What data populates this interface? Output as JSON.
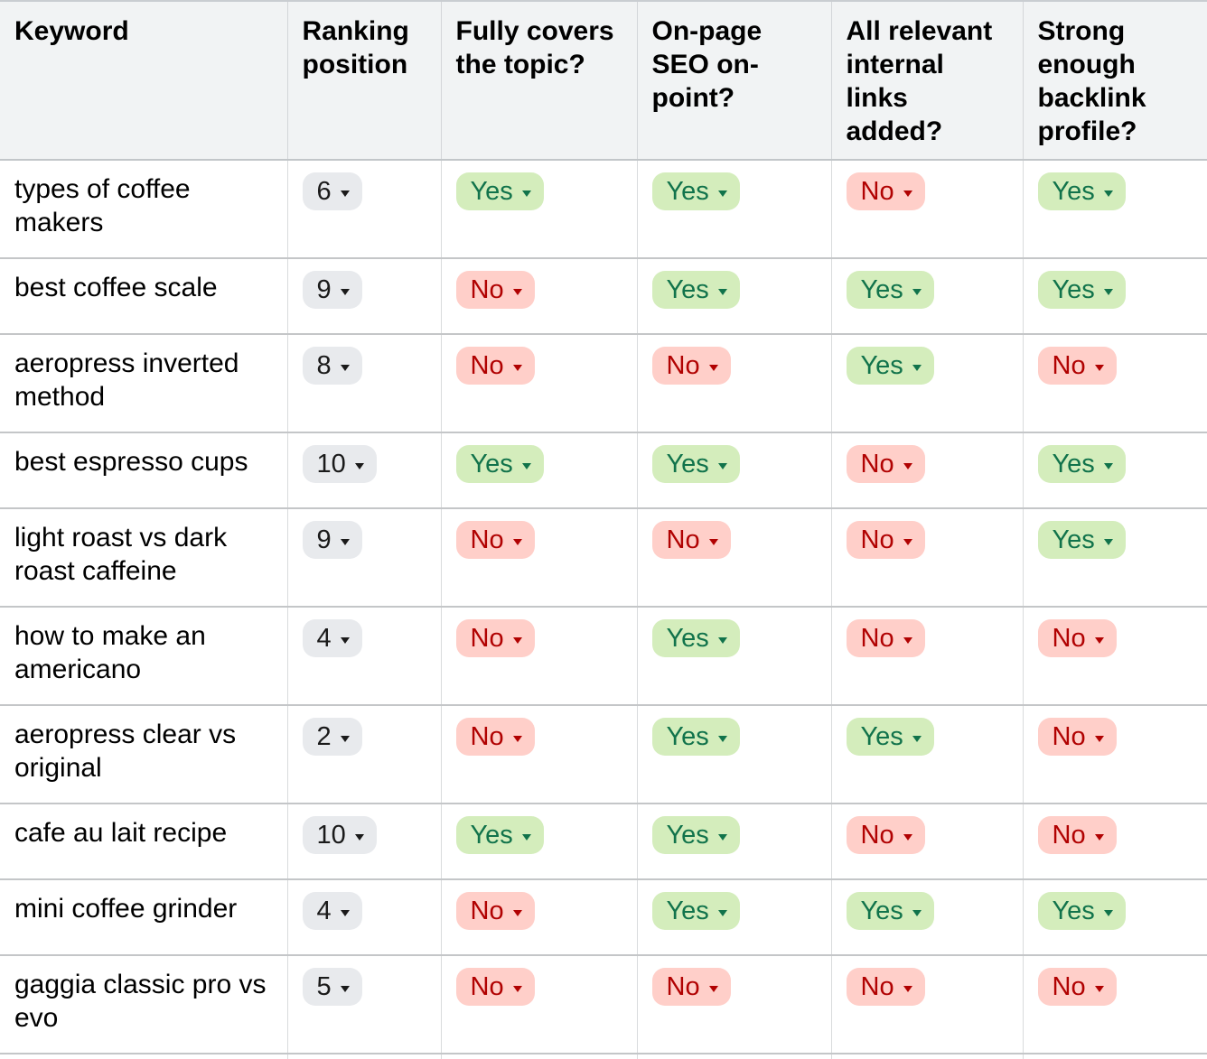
{
  "colors": {
    "header_bg": "#f1f3f4",
    "chip_neutral_bg": "#e8eaed",
    "chip_neutral_text": "#1a1a1a",
    "chip_yes_bg": "#d4edbc",
    "chip_yes_text": "#11734b",
    "chip_no_bg": "#ffcfc9",
    "chip_no_text": "#b10202"
  },
  "table": {
    "columns": [
      {
        "label": "Keyword"
      },
      {
        "label": "Ranking position"
      },
      {
        "label": "Fully covers the topic?"
      },
      {
        "label": "On-page SEO on-point?"
      },
      {
        "label": "All relevant internal links added?"
      },
      {
        "label": "Strong enough backlink profile?"
      }
    ],
    "rows": [
      {
        "keyword": "types of coffee makers",
        "ranking_position": "6",
        "fully_covers_topic": "Yes",
        "onpage_seo": "Yes",
        "internal_links": "No",
        "backlink_profile": "Yes"
      },
      {
        "keyword": "best coffee scale",
        "ranking_position": "9",
        "fully_covers_topic": "No",
        "onpage_seo": "Yes",
        "internal_links": "Yes",
        "backlink_profile": "Yes"
      },
      {
        "keyword": "aeropress inverted method",
        "ranking_position": "8",
        "fully_covers_topic": "No",
        "onpage_seo": "No",
        "internal_links": "Yes",
        "backlink_profile": "No"
      },
      {
        "keyword": "best espresso cups",
        "ranking_position": "10",
        "fully_covers_topic": "Yes",
        "onpage_seo": "Yes",
        "internal_links": "No",
        "backlink_profile": "Yes"
      },
      {
        "keyword": "light roast vs dark roast caffeine",
        "ranking_position": "9",
        "fully_covers_topic": "No",
        "onpage_seo": "No",
        "internal_links": "No",
        "backlink_profile": "Yes"
      },
      {
        "keyword": "how to make an americano",
        "ranking_position": "4",
        "fully_covers_topic": "No",
        "onpage_seo": "Yes",
        "internal_links": "No",
        "backlink_profile": "No"
      },
      {
        "keyword": "aeropress clear vs original",
        "ranking_position": "2",
        "fully_covers_topic": "No",
        "onpage_seo": "Yes",
        "internal_links": "Yes",
        "backlink_profile": "No"
      },
      {
        "keyword": "cafe au lait recipe",
        "ranking_position": "10",
        "fully_covers_topic": "Yes",
        "onpage_seo": "Yes",
        "internal_links": "No",
        "backlink_profile": "No"
      },
      {
        "keyword": "mini coffee grinder",
        "ranking_position": "4",
        "fully_covers_topic": "No",
        "onpage_seo": "Yes",
        "internal_links": "Yes",
        "backlink_profile": "Yes"
      },
      {
        "keyword": "gaggia classic pro vs evo",
        "ranking_position": "5",
        "fully_covers_topic": "No",
        "onpage_seo": "No",
        "internal_links": "No",
        "backlink_profile": "No"
      }
    ]
  }
}
